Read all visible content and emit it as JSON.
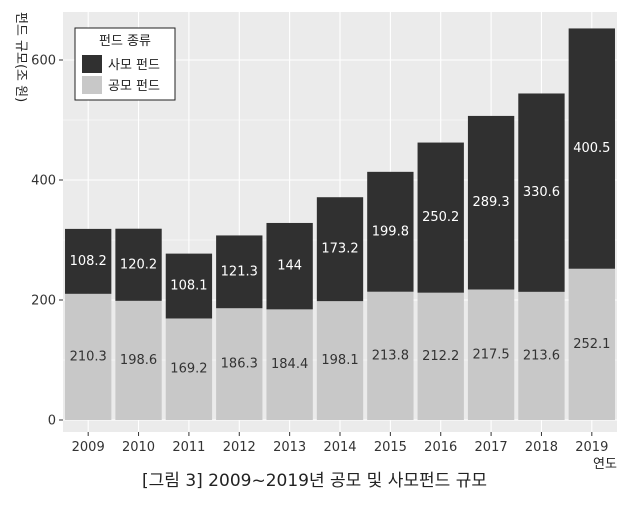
{
  "chart_data": {
    "type": "bar",
    "stacked": true,
    "categories": [
      "2009",
      "2010",
      "2011",
      "2012",
      "2013",
      "2014",
      "2015",
      "2016",
      "2017",
      "2018",
      "2019"
    ],
    "series": [
      {
        "name": "공모 펀드",
        "color": "#c8c8c8",
        "label_color": "#333333",
        "values": [
          210.3,
          198.6,
          169.2,
          186.3,
          184.4,
          198.1,
          213.8,
          212.2,
          217.5,
          213.6,
          252.1
        ],
        "labels": [
          "210.3",
          "198.6",
          "169.2",
          "186.3",
          "184.4",
          "198.1",
          "213.8",
          "212.2",
          "217.5",
          "213.6",
          "252.1"
        ]
      },
      {
        "name": "사모 펀드",
        "color": "#303030",
        "label_color": "#ffffff",
        "values": [
          108.2,
          120.2,
          108.1,
          121.3,
          144,
          173.2,
          199.8,
          250.2,
          289.3,
          330.6,
          400.5
        ],
        "labels": [
          "108.2",
          "120.2",
          "108.1",
          "121.3",
          "144",
          "173.2",
          "199.8",
          "250.2",
          "289.3",
          "330.6",
          "400.5"
        ]
      }
    ],
    "ylabel": "펀드 규모(조 원)",
    "xlabel": "연도",
    "ylim": [
      -20,
      680
    ],
    "yticks": [
      0,
      200,
      400,
      600
    ],
    "ytick_labels": [
      "0",
      "200",
      "400",
      "600"
    ],
    "grid": true,
    "legend": {
      "title": "펀드 종류",
      "position": "top-left",
      "entries": [
        {
          "name": "사모 펀드",
          "color": "#303030"
        },
        {
          "name": "공모 펀드",
          "color": "#c8c8c8"
        }
      ]
    }
  },
  "caption": "[그림 3] 2009~2019년 공모 및 사모펀드 규모",
  "colors": {
    "panel": "#ebebeb",
    "grid": "#ffffff"
  }
}
